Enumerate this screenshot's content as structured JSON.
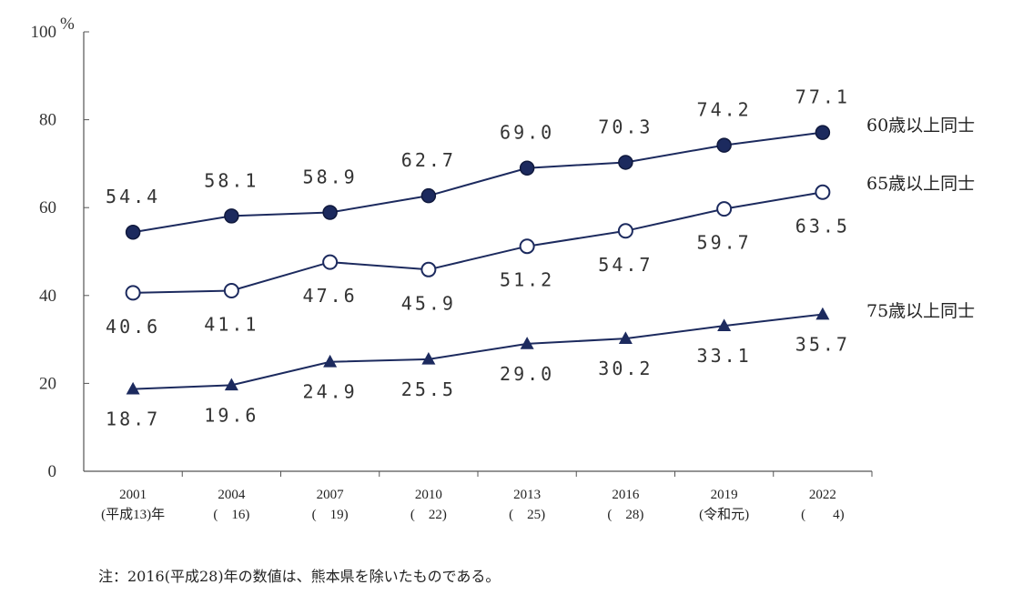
{
  "chart_data": {
    "type": "line",
    "y_unit": "%",
    "ylim": [
      0,
      100
    ],
    "y_ticks": [
      "0",
      "20",
      "40",
      "60",
      "80",
      "100"
    ],
    "categories": [
      {
        "year": "2001",
        "era": "(平成13)年"
      },
      {
        "year": "2004",
        "era": "(　16)"
      },
      {
        "year": "2007",
        "era": "(　19)"
      },
      {
        "year": "2010",
        "era": "(　22)"
      },
      {
        "year": "2013",
        "era": "(　25)"
      },
      {
        "year": "2016",
        "era": "(　28)"
      },
      {
        "year": "2019",
        "era": "(令和元)"
      },
      {
        "year": "2022",
        "era": "(　　4)"
      }
    ],
    "series": [
      {
        "name": "60歳以上同士",
        "marker": "filled-circle",
        "values": [
          54.4,
          58.1,
          58.9,
          62.7,
          69.0,
          70.3,
          74.2,
          77.1
        ],
        "labels": [
          "54.4",
          "58.1",
          "58.9",
          "62.7",
          "69.0",
          "70.3",
          "74.2",
          "77.1"
        ]
      },
      {
        "name": "65歳以上同士",
        "marker": "open-circle",
        "values": [
          40.6,
          41.1,
          47.6,
          45.9,
          51.2,
          54.7,
          59.7,
          63.5
        ],
        "labels": [
          "40.6",
          "41.1",
          "47.6",
          "45.9",
          "51.2",
          "54.7",
          "59.7",
          "63.5"
        ]
      },
      {
        "name": "75歳以上同士",
        "marker": "filled-triangle",
        "values": [
          18.7,
          19.6,
          24.9,
          25.5,
          29.0,
          30.2,
          33.1,
          35.7
        ],
        "labels": [
          "18.7",
          "19.6",
          "24.9",
          "25.5",
          "29.0",
          "30.2",
          "33.1",
          "35.7"
        ]
      }
    ],
    "colors": {
      "line": "#1c2a5e",
      "marker": "#1c2a5e",
      "open_fill": "#ffffff"
    },
    "grid": false,
    "legend": "inline-right"
  },
  "note": "注：2016(平成28)年の数値は、熊本県を除いたものである。"
}
